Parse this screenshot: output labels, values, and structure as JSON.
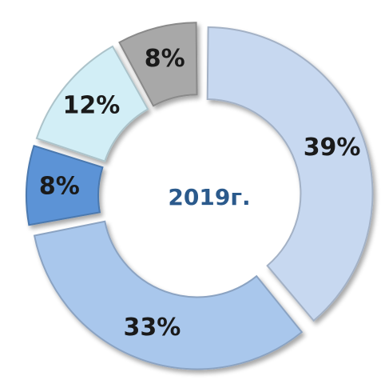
{
  "chart_data": {
    "type": "pie",
    "donut": true,
    "center_label": "2019г.",
    "center_label_color": "#2b5a8c",
    "slices": [
      {
        "value": 39,
        "label": "39%",
        "color": "#c7d8f0"
      },
      {
        "value": 33,
        "label": "33%",
        "color": "#a9c7ec"
      },
      {
        "value": 8,
        "label": "8%",
        "color": "#5c93d6"
      },
      {
        "value": 12,
        "label": "12%",
        "color": "#d2eef6"
      },
      {
        "value": 8,
        "label": "8%",
        "color": "#a8a8a8"
      }
    ],
    "start_angle_deg": 0,
    "direction": "clockwise",
    "exploded": true
  }
}
